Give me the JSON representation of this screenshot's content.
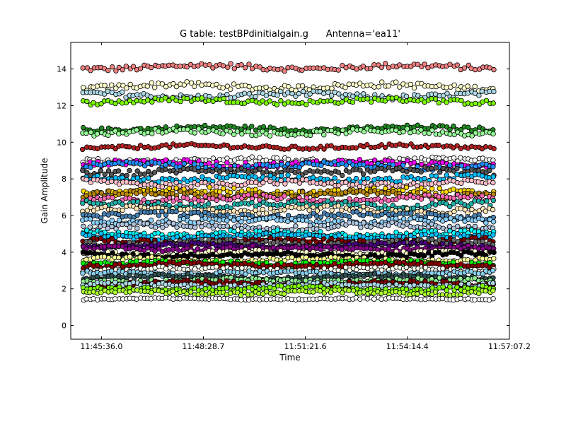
{
  "chart_data": {
    "type": "scatter",
    "title": "G table: testBPdinitialgain.g      Antenna='ea11'",
    "xlabel": "Time",
    "ylabel": "Gain Amplitude",
    "x_ticks": [
      "11:45:36.0",
      "11:48:28.7",
      "11:51:21.6",
      "11:54:14.4",
      "11:57:07.2"
    ],
    "x_tick_seconds": [
      42336.0,
      42508.7,
      42681.6,
      42854.4,
      43027.2
    ],
    "xlim_seconds": [
      42284.0,
      43027.2
    ],
    "y_ticks": [
      0,
      2,
      4,
      6,
      8,
      10,
      12,
      14
    ],
    "ylim": [
      -0.75,
      15.45
    ],
    "x_range_seconds": [
      42305.0,
      43000.0
    ],
    "points_per_series": 115,
    "grid": false,
    "legend": "none",
    "marker": "circle",
    "series": [
      {
        "level": 14.1,
        "spread": 0.28,
        "color": "#f08080"
      },
      {
        "level": 13.05,
        "spread": 0.3,
        "color": "#ffffcc"
      },
      {
        "level": 12.55,
        "spread": 0.3,
        "color": "#add8e6"
      },
      {
        "level": 12.25,
        "spread": 0.25,
        "color": "#7cfc00"
      },
      {
        "level": 10.75,
        "spread": 0.22,
        "color": "#228b22"
      },
      {
        "level": 10.55,
        "spread": 0.25,
        "color": "#98fb98"
      },
      {
        "level": 9.75,
        "spread": 0.2,
        "color": "#b22222"
      },
      {
        "level": 9.0,
        "spread": 0.25,
        "color": "#f5f5f5"
      },
      {
        "level": 8.85,
        "spread": 0.28,
        "color": "#ff00ff"
      },
      {
        "level": 8.7,
        "spread": 0.3,
        "color": "#1e90ff"
      },
      {
        "level": 8.4,
        "spread": 0.3,
        "color": "#555555"
      },
      {
        "level": 8.0,
        "spread": 0.3,
        "color": "#00bfff"
      },
      {
        "level": 7.75,
        "spread": 0.3,
        "color": "#ffc0cb"
      },
      {
        "level": 7.3,
        "spread": 0.3,
        "color": "#ffd700"
      },
      {
        "level": 7.15,
        "spread": 0.3,
        "color": "#b8860b"
      },
      {
        "level": 6.9,
        "spread": 0.3,
        "color": "#ff69b4"
      },
      {
        "level": 6.6,
        "spread": 0.3,
        "color": "#20b2aa"
      },
      {
        "level": 6.3,
        "spread": 0.3,
        "color": "#ffe4b5"
      },
      {
        "level": 6.0,
        "spread": 0.3,
        "color": "#4682b4"
      },
      {
        "level": 5.7,
        "spread": 0.3,
        "color": "#87cefa"
      },
      {
        "level": 5.4,
        "spread": 0.3,
        "color": "#b0c4de"
      },
      {
        "level": 5.0,
        "spread": 0.28,
        "color": "#00ffff"
      },
      {
        "level": 4.85,
        "spread": 0.25,
        "color": "#00bfff"
      },
      {
        "level": 4.6,
        "spread": 0.25,
        "color": "#800000"
      },
      {
        "level": 4.5,
        "spread": 0.25,
        "color": "#696969"
      },
      {
        "level": 4.35,
        "spread": 0.22,
        "color": "#4b0082"
      },
      {
        "level": 4.2,
        "spread": 0.22,
        "color": "#8b008b"
      },
      {
        "level": 3.95,
        "spread": 0.22,
        "color": "#fffacd"
      },
      {
        "level": 3.85,
        "spread": 0.22,
        "color": "#000000"
      },
      {
        "level": 3.6,
        "spread": 0.2,
        "color": "#ffff99"
      },
      {
        "level": 3.4,
        "spread": 0.22,
        "color": "#00ff00"
      },
      {
        "level": 3.3,
        "spread": 0.22,
        "color": "#8b0000"
      },
      {
        "level": 3.05,
        "spread": 0.22,
        "color": "#fffff0"
      },
      {
        "level": 2.85,
        "spread": 0.2,
        "color": "#87ceeb"
      },
      {
        "level": 2.65,
        "spread": 0.2,
        "color": "#2f4f4f"
      },
      {
        "level": 2.45,
        "spread": 0.2,
        "color": "#90ee90"
      },
      {
        "level": 2.3,
        "spread": 0.2,
        "color": "#800000"
      },
      {
        "level": 2.2,
        "spread": 0.2,
        "color": "#add8e6"
      },
      {
        "level": 2.0,
        "spread": 0.2,
        "color": "#7fff00"
      },
      {
        "level": 1.8,
        "spread": 0.2,
        "color": "#adff2f"
      },
      {
        "level": 1.45,
        "spread": 0.08,
        "color": "#ffffff"
      }
    ]
  }
}
